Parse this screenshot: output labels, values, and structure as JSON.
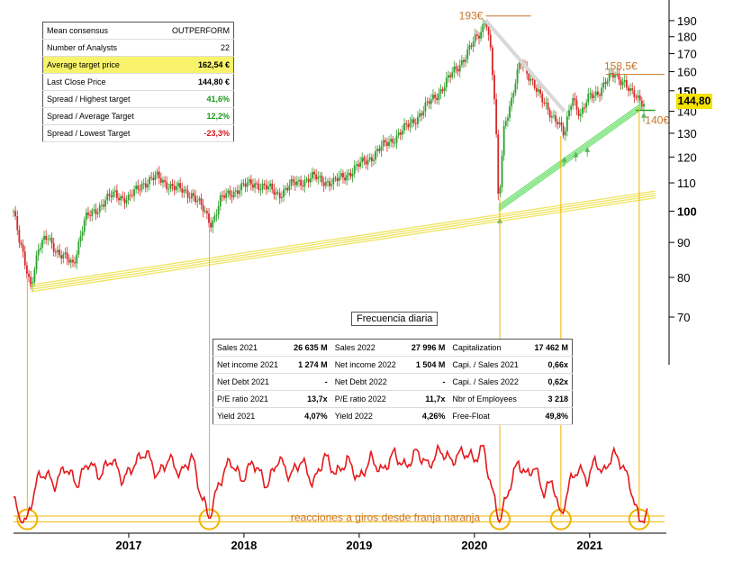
{
  "consensus_table": [
    {
      "label": "Mean consensus",
      "value": "OUTPERFORM",
      "style": "plain"
    },
    {
      "label": "Number of Analysts",
      "value": "22",
      "style": "plain"
    },
    {
      "label": "Average target price",
      "value": "162,54 €",
      "style": "highlight"
    },
    {
      "label": "Last Close Price",
      "value": "144,80 €",
      "style": "bold"
    },
    {
      "label": "Spread / Highest target",
      "value": "41,6%",
      "style": "pos"
    },
    {
      "label": "Spread / Average Target",
      "value": "12,2%",
      "style": "pos"
    },
    {
      "label": "Spread / Lowest Target",
      "value": "-23,3%",
      "style": "neg"
    }
  ],
  "fundamentals_table": [
    [
      "Sales 2021",
      "26 635 M",
      "Sales 2022",
      "27 996 M",
      "Capitalization",
      "17 462 M"
    ],
    [
      "Net income 2021",
      "1 274 M",
      "Net income 2022",
      "1 504 M",
      "Capi. / Sales 2021",
      "0,66x"
    ],
    [
      "Net Debt 2021",
      "-",
      "Net Debt 2022",
      "-",
      "Capi. / Sales 2022",
      "0,62x"
    ],
    [
      "P/E ratio 2021",
      "13,7x",
      "P/E ratio 2022",
      "11,7x",
      "Nbr of Employees",
      "3 218"
    ],
    [
      "Yield 2021",
      "4,07%",
      "Yield 2022",
      "4,26%",
      "Free-Float",
      "49,8%"
    ]
  ],
  "frequency_label": "Frecuencia diaria",
  "last_price_badge": "144,80",
  "annotations": {
    "high_all": "193€",
    "high_recent": "158,5€",
    "support": "140€",
    "oscillator_note": "reacciones a giros desde franja naranja"
  },
  "colors": {
    "up_candle": "#2ca02c",
    "down_candle": "#d62728",
    "trend_yellow": "#f0e56a",
    "trend_green": "#7be37b",
    "oscillator": "#e41a1c",
    "marker_orange": "#f0b400",
    "highlight": "#f8f36a"
  },
  "chart_data": {
    "type": "line",
    "yscale": "log",
    "y_ticks": [
      70,
      80,
      90,
      100,
      110,
      120,
      130,
      140,
      150,
      160,
      170,
      180,
      190
    ],
    "y_bold_ticks": [
      100,
      150
    ],
    "ylim": [
      62,
      200
    ],
    "x_ticks": [
      "2017",
      "2018",
      "2019",
      "2020",
      "2021"
    ],
    "xlim": [
      2016.0,
      2021.65
    ],
    "price_series": [
      [
        2016.0,
        100
      ],
      [
        2016.05,
        90
      ],
      [
        2016.1,
        84
      ],
      [
        2016.15,
        78
      ],
      [
        2016.22,
        88
      ],
      [
        2016.3,
        92
      ],
      [
        2016.4,
        86
      ],
      [
        2016.52,
        84
      ],
      [
        2016.62,
        97
      ],
      [
        2016.75,
        102
      ],
      [
        2016.88,
        106
      ],
      [
        2017.0,
        104
      ],
      [
        2017.12,
        110
      ],
      [
        2017.25,
        112
      ],
      [
        2017.4,
        108
      ],
      [
        2017.55,
        106
      ],
      [
        2017.65,
        100
      ],
      [
        2017.72,
        96
      ],
      [
        2017.8,
        104
      ],
      [
        2017.95,
        108
      ],
      [
        2018.1,
        110
      ],
      [
        2018.3,
        106
      ],
      [
        2018.45,
        110
      ],
      [
        2018.6,
        112
      ],
      [
        2018.78,
        110
      ],
      [
        2018.95,
        115
      ],
      [
        2019.1,
        120
      ],
      [
        2019.25,
        126
      ],
      [
        2019.4,
        132
      ],
      [
        2019.55,
        140
      ],
      [
        2019.7,
        150
      ],
      [
        2019.85,
        162
      ],
      [
        2019.95,
        172
      ],
      [
        2020.05,
        182
      ],
      [
        2020.1,
        193
      ],
      [
        2020.14,
        172
      ],
      [
        2020.18,
        140
      ],
      [
        2020.21,
        100
      ],
      [
        2020.26,
        135
      ],
      [
        2020.32,
        145
      ],
      [
        2020.4,
        165
      ],
      [
        2020.5,
        156
      ],
      [
        2020.58,
        145
      ],
      [
        2020.65,
        140
      ],
      [
        2020.72,
        136
      ],
      [
        2020.78,
        128
      ],
      [
        2020.85,
        148
      ],
      [
        2020.92,
        138
      ],
      [
        2021.0,
        147
      ],
      [
        2021.08,
        150
      ],
      [
        2021.15,
        155
      ],
      [
        2021.22,
        158.5
      ],
      [
        2021.3,
        155
      ],
      [
        2021.36,
        148
      ],
      [
        2021.42,
        146
      ],
      [
        2021.47,
        144.8
      ]
    ],
    "trendlines": [
      {
        "name": "",
        "color": "yellow",
        "points": [
          [
            2016.15,
            78
          ],
          [
            2021.57,
            107
          ]
        ]
      },
      {
        "name": "",
        "color": "green",
        "points": [
          [
            2020.21,
            100
          ],
          [
            2021.45,
            141
          ]
        ]
      },
      {
        "name": "",
        "color": "gray",
        "points": [
          [
            2020.1,
            190
          ],
          [
            2020.78,
            140
          ]
        ]
      }
    ],
    "horizontal_levels": [
      {
        "label": "193€",
        "value": 193
      },
      {
        "label": "158,5€",
        "value": 158.5
      },
      {
        "label": "140€",
        "value": 140
      }
    ],
    "oscillator": {
      "ylim": [
        0,
        100
      ],
      "band": [
        5,
        12
      ],
      "turn_markers_x": [
        2016.12,
        2017.7,
        2020.22,
        2020.75,
        2021.43
      ],
      "series": [
        [
          2016.0,
          35
        ],
        [
          2016.05,
          8
        ],
        [
          2016.12,
          6
        ],
        [
          2016.2,
          55
        ],
        [
          2016.28,
          65
        ],
        [
          2016.35,
          48
        ],
        [
          2016.45,
          72
        ],
        [
          2016.55,
          50
        ],
        [
          2016.65,
          78
        ],
        [
          2016.75,
          60
        ],
        [
          2016.85,
          82
        ],
        [
          2016.95,
          55
        ],
        [
          2017.05,
          75
        ],
        [
          2017.15,
          90
        ],
        [
          2017.25,
          60
        ],
        [
          2017.35,
          82
        ],
        [
          2017.45,
          62
        ],
        [
          2017.55,
          85
        ],
        [
          2017.62,
          40
        ],
        [
          2017.7,
          10
        ],
        [
          2017.78,
          50
        ],
        [
          2017.88,
          80
        ],
        [
          2017.98,
          55
        ],
        [
          2018.08,
          78
        ],
        [
          2018.2,
          48
        ],
        [
          2018.3,
          82
        ],
        [
          2018.4,
          60
        ],
        [
          2018.5,
          80
        ],
        [
          2018.6,
          50
        ],
        [
          2018.7,
          85
        ],
        [
          2018.8,
          62
        ],
        [
          2018.9,
          80
        ],
        [
          2019.0,
          55
        ],
        [
          2019.1,
          82
        ],
        [
          2019.2,
          65
        ],
        [
          2019.3,
          88
        ],
        [
          2019.4,
          70
        ],
        [
          2019.5,
          90
        ],
        [
          2019.6,
          72
        ],
        [
          2019.7,
          92
        ],
        [
          2019.8,
          78
        ],
        [
          2019.9,
          90
        ],
        [
          2020.0,
          80
        ],
        [
          2020.08,
          95
        ],
        [
          2020.14,
          50
        ],
        [
          2020.22,
          6
        ],
        [
          2020.3,
          45
        ],
        [
          2020.38,
          78
        ],
        [
          2020.45,
          60
        ],
        [
          2020.52,
          72
        ],
        [
          2020.6,
          40
        ],
        [
          2020.68,
          55
        ],
        [
          2020.75,
          8
        ],
        [
          2020.82,
          50
        ],
        [
          2020.9,
          70
        ],
        [
          2020.98,
          55
        ],
        [
          2021.05,
          80
        ],
        [
          2021.12,
          62
        ],
        [
          2021.2,
          88
        ],
        [
          2021.28,
          75
        ],
        [
          2021.35,
          50
        ],
        [
          2021.43,
          6
        ],
        [
          2021.5,
          14
        ]
      ]
    }
  }
}
